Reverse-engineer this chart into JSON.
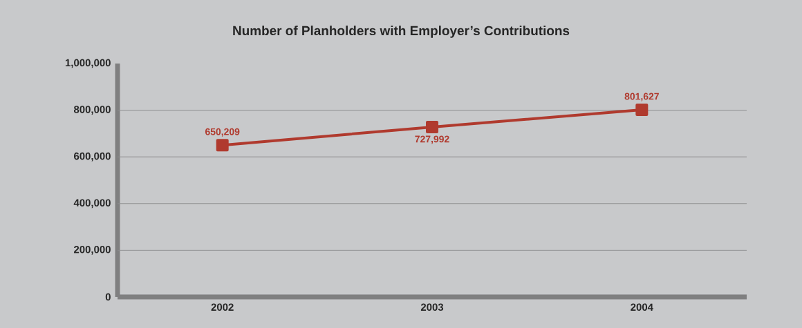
{
  "chart_data": {
    "type": "line",
    "title": "Number of Planholders with Employer’s Contributions",
    "categories": [
      "2002",
      "2003",
      "2004"
    ],
    "series": [
      {
        "color": "#b03a2e",
        "values": [
          650209,
          727992,
          801627
        ],
        "value_labels": [
          "650,209",
          "727,992",
          "801,627"
        ]
      }
    ],
    "ylim": [
      0,
      1000000
    ],
    "yticks": [
      {
        "value": 0,
        "label": "0"
      },
      {
        "value": 200000,
        "label": "200,000"
      },
      {
        "value": 400000,
        "label": "400,000"
      },
      {
        "value": 600000,
        "label": "600,000"
      },
      {
        "value": 800000,
        "label": "800,000"
      },
      {
        "value": 1000000,
        "label": "1,000,000"
      }
    ],
    "grid": "y",
    "marker": "square",
    "line_style": "solid"
  }
}
